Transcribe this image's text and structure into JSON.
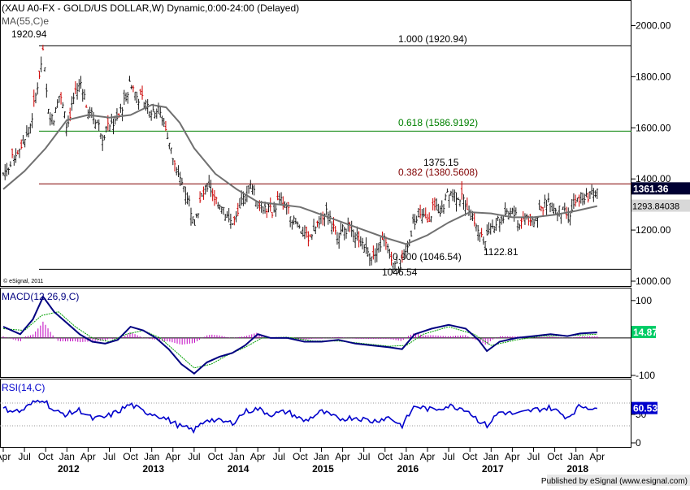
{
  "header": {
    "title": "(XAU A0-FX - GOLD/US DOLLAR,W) Dynamic,0:00-24:00 (Delayed)",
    "ma_label": "MA(55,C)e",
    "copyright": "© eSignal, 2011"
  },
  "footer": {
    "published": "Published by eSignal (www.esignal.com)"
  },
  "colors": {
    "candle": "#1a1a1a",
    "bull_accent": "#cc0000",
    "ma_line": "#707070",
    "fib_100": "#000000",
    "fib_618": "#008000",
    "fib_382": "#800000",
    "fib_0": "#000000",
    "macd_line": "#000080",
    "signal_line": "#00a000",
    "histogram": "#c000c0",
    "rsi_line": "#0000cc",
    "price_tag_bg": "#000033",
    "macd_tag_bg": "#00cc66"
  },
  "chart_data": [
    {
      "name": "price",
      "type": "candlestick",
      "ylim": [
        1000,
        2100
      ],
      "yticks": [
        1000,
        1200,
        1400,
        1600,
        1800,
        2000
      ],
      "ytick_labels": [
        "1000.00",
        "1200.00",
        "1400.00",
        "1600.00",
        "1800.00",
        "2000.00"
      ],
      "x_start": 2011.25,
      "x_end": 2018.3,
      "fib_levels": [
        {
          "value": 1920.94,
          "label": "1.000 (1920.94)",
          "key": "fib_100"
        },
        {
          "value": 1586.9192,
          "label": "0.618 (1586.9192)",
          "key": "fib_618"
        },
        {
          "value": 1380.5608,
          "label": "0.382 (1380.5608)",
          "key": "fib_382"
        },
        {
          "value": 1046.54,
          "label": "0.000 (1046.54)",
          "key": "fib_0"
        }
      ],
      "annotations": [
        {
          "text": "1920.94",
          "x": 2011.7,
          "y": 1920.94
        },
        {
          "text": "1375.15",
          "x": 2016.52,
          "y": 1375.15
        },
        {
          "text": "1122.81",
          "x": 2016.96,
          "y": 1122.81
        },
        {
          "text": "1046.54",
          "x": 2015.96,
          "y": 1046.54
        }
      ],
      "last_price": "1361.36",
      "ma_value": "1293.84038",
      "close_series": [
        [
          2011.25,
          1420
        ],
        [
          2011.4,
          1500
        ],
        [
          2011.55,
          1580
        ],
        [
          2011.62,
          1700
        ],
        [
          2011.68,
          1820
        ],
        [
          2011.72,
          1895
        ],
        [
          2011.78,
          1660
        ],
        [
          2011.85,
          1640
        ],
        [
          2011.92,
          1740
        ],
        [
          2012.0,
          1600
        ],
        [
          2012.08,
          1720
        ],
        [
          2012.17,
          1780
        ],
        [
          2012.25,
          1660
        ],
        [
          2012.35,
          1630
        ],
        [
          2012.42,
          1570
        ],
        [
          2012.5,
          1610
        ],
        [
          2012.58,
          1620
        ],
        [
          2012.67,
          1700
        ],
        [
          2012.75,
          1780
        ],
        [
          2012.83,
          1720
        ],
        [
          2012.92,
          1700
        ],
        [
          2013.0,
          1670
        ],
        [
          2013.08,
          1670
        ],
        [
          2013.17,
          1600
        ],
        [
          2013.25,
          1480
        ],
        [
          2013.3,
          1410
        ],
        [
          2013.38,
          1370
        ],
        [
          2013.45,
          1300
        ],
        [
          2013.5,
          1220
        ],
        [
          2013.58,
          1320
        ],
        [
          2013.67,
          1380
        ],
        [
          2013.75,
          1320
        ],
        [
          2013.83,
          1300
        ],
        [
          2013.92,
          1230
        ],
        [
          2014.0,
          1240
        ],
        [
          2014.08,
          1320
        ],
        [
          2014.17,
          1380
        ],
        [
          2014.25,
          1300
        ],
        [
          2014.33,
          1290
        ],
        [
          2014.42,
          1270
        ],
        [
          2014.5,
          1320
        ],
        [
          2014.58,
          1300
        ],
        [
          2014.67,
          1240
        ],
        [
          2014.75,
          1200
        ],
        [
          2014.83,
          1170
        ],
        [
          2014.92,
          1200
        ],
        [
          2015.0,
          1260
        ],
        [
          2015.08,
          1270
        ],
        [
          2015.17,
          1180
        ],
        [
          2015.25,
          1200
        ],
        [
          2015.33,
          1210
        ],
        [
          2015.42,
          1180
        ],
        [
          2015.5,
          1140
        ],
        [
          2015.58,
          1100
        ],
        [
          2015.67,
          1130
        ],
        [
          2015.75,
          1170
        ],
        [
          2015.83,
          1090
        ],
        [
          2015.92,
          1060
        ],
        [
          2016.0,
          1100
        ],
        [
          2016.08,
          1230
        ],
        [
          2016.17,
          1250
        ],
        [
          2016.25,
          1240
        ],
        [
          2016.33,
          1290
        ],
        [
          2016.42,
          1280
        ],
        [
          2016.5,
          1350
        ],
        [
          2016.58,
          1340
        ],
        [
          2016.67,
          1320
        ],
        [
          2016.75,
          1280
        ],
        [
          2016.83,
          1220
        ],
        [
          2016.92,
          1150
        ],
        [
          2017.0,
          1200
        ],
        [
          2017.08,
          1240
        ],
        [
          2017.17,
          1250
        ],
        [
          2017.25,
          1270
        ],
        [
          2017.33,
          1230
        ],
        [
          2017.42,
          1260
        ],
        [
          2017.5,
          1220
        ],
        [
          2017.58,
          1280
        ],
        [
          2017.67,
          1320
        ],
        [
          2017.75,
          1280
        ],
        [
          2017.83,
          1275
        ],
        [
          2017.92,
          1250
        ],
        [
          2018.0,
          1310
        ],
        [
          2018.08,
          1340
        ],
        [
          2018.17,
          1330
        ],
        [
          2018.25,
          1361.36
        ]
      ],
      "ma_series": [
        [
          2011.25,
          1360
        ],
        [
          2011.5,
          1430
        ],
        [
          2011.75,
          1520
        ],
        [
          2012.0,
          1630
        ],
        [
          2012.25,
          1650
        ],
        [
          2012.5,
          1640
        ],
        [
          2012.75,
          1650
        ],
        [
          2013.0,
          1690
        ],
        [
          2013.17,
          1680
        ],
        [
          2013.33,
          1620
        ],
        [
          2013.5,
          1520
        ],
        [
          2013.75,
          1420
        ],
        [
          2014.0,
          1360
        ],
        [
          2014.25,
          1310
        ],
        [
          2014.5,
          1300
        ],
        [
          2014.75,
          1290
        ],
        [
          2015.0,
          1260
        ],
        [
          2015.25,
          1230
        ],
        [
          2015.5,
          1200
        ],
        [
          2015.75,
          1170
        ],
        [
          2016.0,
          1145
        ],
        [
          2016.25,
          1180
        ],
        [
          2016.5,
          1230
        ],
        [
          2016.75,
          1270
        ],
        [
          2017.0,
          1265
        ],
        [
          2017.25,
          1250
        ],
        [
          2017.5,
          1250
        ],
        [
          2017.75,
          1260
        ],
        [
          2018.0,
          1275
        ],
        [
          2018.25,
          1293.84
        ]
      ]
    },
    {
      "name": "macd",
      "type": "line",
      "label": "MACD(12,26,9,C)",
      "ylim": [
        -100,
        130
      ],
      "yticks": [
        100,
        -100
      ],
      "ytick_labels": [
        "100",
        "-100"
      ],
      "last_value": "14.87",
      "macd_series": [
        [
          2011.25,
          30
        ],
        [
          2011.45,
          10
        ],
        [
          2011.6,
          50
        ],
        [
          2011.72,
          110
        ],
        [
          2011.85,
          70
        ],
        [
          2012.0,
          40
        ],
        [
          2012.15,
          10
        ],
        [
          2012.3,
          -10
        ],
        [
          2012.45,
          -15
        ],
        [
          2012.6,
          -5
        ],
        [
          2012.75,
          30
        ],
        [
          2012.9,
          20
        ],
        [
          2013.05,
          0
        ],
        [
          2013.2,
          -30
        ],
        [
          2013.35,
          -70
        ],
        [
          2013.5,
          -95
        ],
        [
          2013.65,
          -65
        ],
        [
          2013.8,
          -50
        ],
        [
          2013.95,
          -40
        ],
        [
          2014.1,
          -20
        ],
        [
          2014.25,
          10
        ],
        [
          2014.4,
          0
        ],
        [
          2014.6,
          0
        ],
        [
          2014.8,
          -10
        ],
        [
          2015.0,
          -10
        ],
        [
          2015.2,
          -5
        ],
        [
          2015.4,
          -15
        ],
        [
          2015.6,
          -20
        ],
        [
          2015.8,
          -25
        ],
        [
          2015.95,
          -30
        ],
        [
          2016.1,
          10
        ],
        [
          2016.3,
          25
        ],
        [
          2016.5,
          35
        ],
        [
          2016.7,
          25
        ],
        [
          2016.85,
          -5
        ],
        [
          2016.95,
          -35
        ],
        [
          2017.1,
          -10
        ],
        [
          2017.3,
          0
        ],
        [
          2017.5,
          5
        ],
        [
          2017.7,
          10
        ],
        [
          2017.9,
          5
        ],
        [
          2018.05,
          12
        ],
        [
          2018.25,
          14.87
        ]
      ],
      "signal_series": [
        [
          2011.25,
          25
        ],
        [
          2011.5,
          20
        ],
        [
          2011.7,
          60
        ],
        [
          2011.9,
          70
        ],
        [
          2012.1,
          30
        ],
        [
          2012.3,
          0
        ],
        [
          2012.5,
          -10
        ],
        [
          2012.7,
          10
        ],
        [
          2012.9,
          20
        ],
        [
          2013.1,
          0
        ],
        [
          2013.3,
          -40
        ],
        [
          2013.5,
          -80
        ],
        [
          2013.7,
          -70
        ],
        [
          2013.9,
          -45
        ],
        [
          2014.1,
          -25
        ],
        [
          2014.3,
          0
        ],
        [
          2014.6,
          2
        ],
        [
          2014.9,
          -8
        ],
        [
          2015.2,
          -8
        ],
        [
          2015.5,
          -15
        ],
        [
          2015.8,
          -22
        ],
        [
          2016.0,
          -20
        ],
        [
          2016.2,
          10
        ],
        [
          2016.5,
          30
        ],
        [
          2016.8,
          10
        ],
        [
          2017.0,
          -20
        ],
        [
          2017.3,
          -5
        ],
        [
          2017.6,
          5
        ],
        [
          2017.9,
          6
        ],
        [
          2018.25,
          10
        ]
      ]
    },
    {
      "name": "rsi",
      "type": "line",
      "label": "RSI(14,C)",
      "ylim": [
        0,
        100
      ],
      "yticks": [
        50,
        0
      ],
      "ytick_labels": [
        "50",
        "0"
      ],
      "levels": [
        70,
        30
      ],
      "last_value": "60.53",
      "series": [
        [
          2011.25,
          60
        ],
        [
          2011.45,
          55
        ],
        [
          2011.6,
          70
        ],
        [
          2011.72,
          78
        ],
        [
          2011.85,
          55
        ],
        [
          2012.0,
          50
        ],
        [
          2012.15,
          58
        ],
        [
          2012.3,
          42
        ],
        [
          2012.45,
          45
        ],
        [
          2012.6,
          55
        ],
        [
          2012.75,
          68
        ],
        [
          2012.9,
          55
        ],
        [
          2013.05,
          50
        ],
        [
          2013.2,
          40
        ],
        [
          2013.35,
          28
        ],
        [
          2013.5,
          22
        ],
        [
          2013.65,
          42
        ],
        [
          2013.8,
          38
        ],
        [
          2013.95,
          35
        ],
        [
          2014.1,
          55
        ],
        [
          2014.25,
          60
        ],
        [
          2014.4,
          50
        ],
        [
          2014.6,
          55
        ],
        [
          2014.8,
          38
        ],
        [
          2015.0,
          55
        ],
        [
          2015.2,
          42
        ],
        [
          2015.4,
          45
        ],
        [
          2015.6,
          38
        ],
        [
          2015.8,
          45
        ],
        [
          2015.95,
          30
        ],
        [
          2016.1,
          65
        ],
        [
          2016.3,
          58
        ],
        [
          2016.5,
          65
        ],
        [
          2016.7,
          60
        ],
        [
          2016.85,
          40
        ],
        [
          2016.95,
          30
        ],
        [
          2017.1,
          55
        ],
        [
          2017.3,
          50
        ],
        [
          2017.5,
          58
        ],
        [
          2017.7,
          62
        ],
        [
          2017.9,
          45
        ],
        [
          2018.05,
          65
        ],
        [
          2018.25,
          60.53
        ]
      ]
    }
  ],
  "x_axis": {
    "months": [
      {
        "label": "Apr",
        "x": 2011.25
      },
      {
        "label": "Jul",
        "x": 2011.5
      },
      {
        "label": "Oct",
        "x": 2011.75
      },
      {
        "label": "Jan",
        "x": 2012.0
      },
      {
        "label": "Apr",
        "x": 2012.25
      },
      {
        "label": "Jul",
        "x": 2012.5
      },
      {
        "label": "Oct",
        "x": 2012.75
      },
      {
        "label": "Jan",
        "x": 2013.0
      },
      {
        "label": "Apr",
        "x": 2013.25
      },
      {
        "label": "Jul",
        "x": 2013.5
      },
      {
        "label": "Oct",
        "x": 2013.75
      },
      {
        "label": "Jan",
        "x": 2014.0
      },
      {
        "label": "Apr",
        "x": 2014.25
      },
      {
        "label": "Jul",
        "x": 2014.5
      },
      {
        "label": "Oct",
        "x": 2014.75
      },
      {
        "label": "Jan",
        "x": 2015.0
      },
      {
        "label": "Apr",
        "x": 2015.25
      },
      {
        "label": "Jul",
        "x": 2015.5
      },
      {
        "label": "Oct",
        "x": 2015.75
      },
      {
        "label": "Jan",
        "x": 2016.0
      },
      {
        "label": "Apr",
        "x": 2016.25
      },
      {
        "label": "Jul",
        "x": 2016.5
      },
      {
        "label": "Oct",
        "x": 2016.75
      },
      {
        "label": "Jan",
        "x": 2017.0
      },
      {
        "label": "Apr",
        "x": 2017.25
      },
      {
        "label": "Jul",
        "x": 2017.5
      },
      {
        "label": "Oct",
        "x": 2017.75
      },
      {
        "label": "Jan",
        "x": 2018.0
      },
      {
        "label": "Apr",
        "x": 2018.25
      }
    ],
    "years": [
      {
        "label": "2012",
        "x": 2012.0
      },
      {
        "label": "2013",
        "x": 2013.0
      },
      {
        "label": "2014",
        "x": 2014.0
      },
      {
        "label": "2015",
        "x": 2015.0
      },
      {
        "label": "2016",
        "x": 2016.0
      },
      {
        "label": "2017",
        "x": 2017.0
      },
      {
        "label": "2018",
        "x": 2018.0
      }
    ]
  }
}
